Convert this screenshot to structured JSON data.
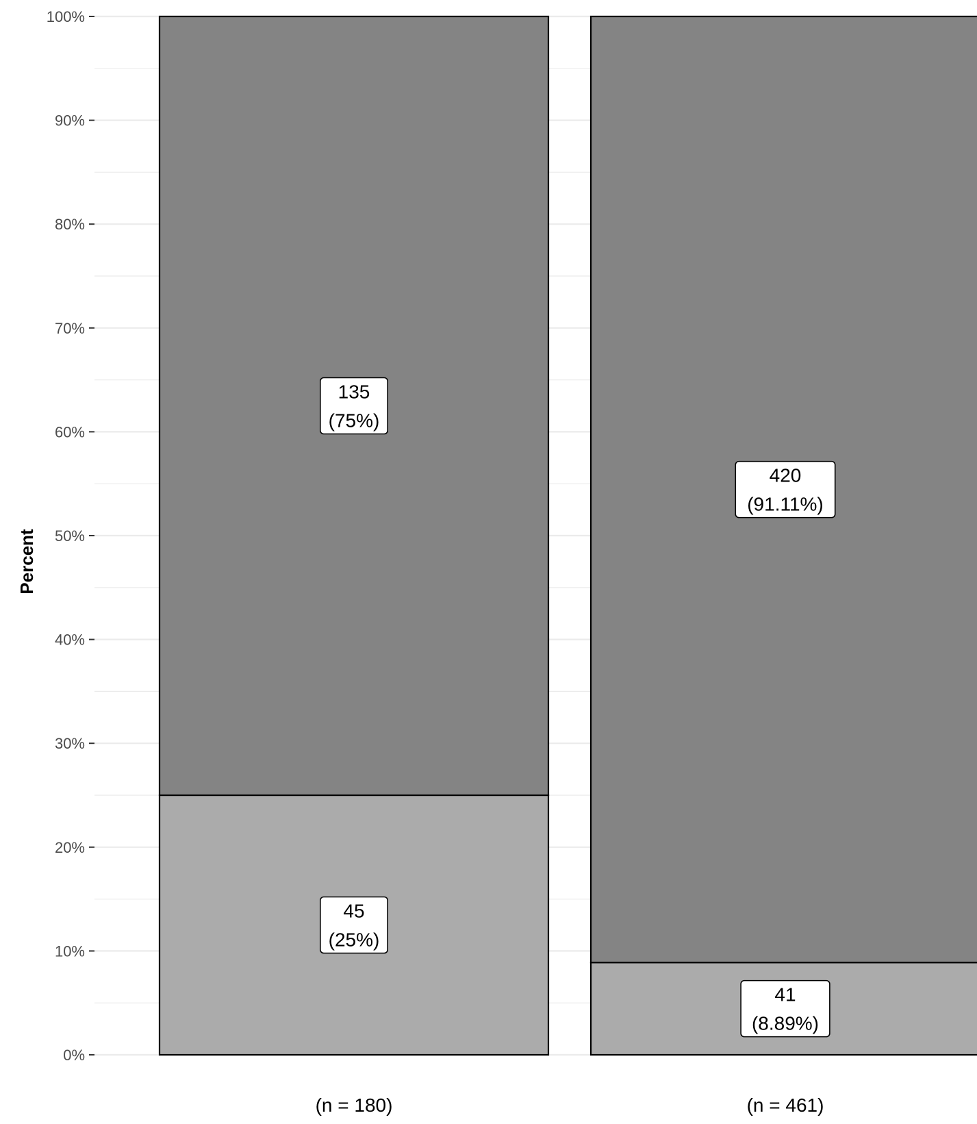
{
  "chart_data": {
    "type": "bar",
    "stacked": true,
    "normalized": true,
    "ylabel": "Percent",
    "ylim": [
      0,
      100
    ],
    "yticks": [
      "0%",
      "10%",
      "20%",
      "30%",
      "40%",
      "50%",
      "60%",
      "70%",
      "80%",
      "90%",
      "100%"
    ],
    "categories": [
      "(n = 180)",
      "(n = 461)"
    ],
    "series": [
      {
        "color": "#ababab",
        "counts": [
          45,
          41
        ],
        "percents": [
          25,
          8.89
        ],
        "labels": [
          [
            "45",
            "(25%)"
          ],
          [
            "41",
            "(8.89%)"
          ]
        ]
      },
      {
        "color": "#848484",
        "counts": [
          135,
          420
        ],
        "percents": [
          75,
          91.11
        ],
        "labels": [
          [
            "135",
            "(75%)"
          ],
          [
            "420",
            "(91.11%)"
          ]
        ]
      }
    ],
    "grid": true,
    "legend": "none"
  }
}
